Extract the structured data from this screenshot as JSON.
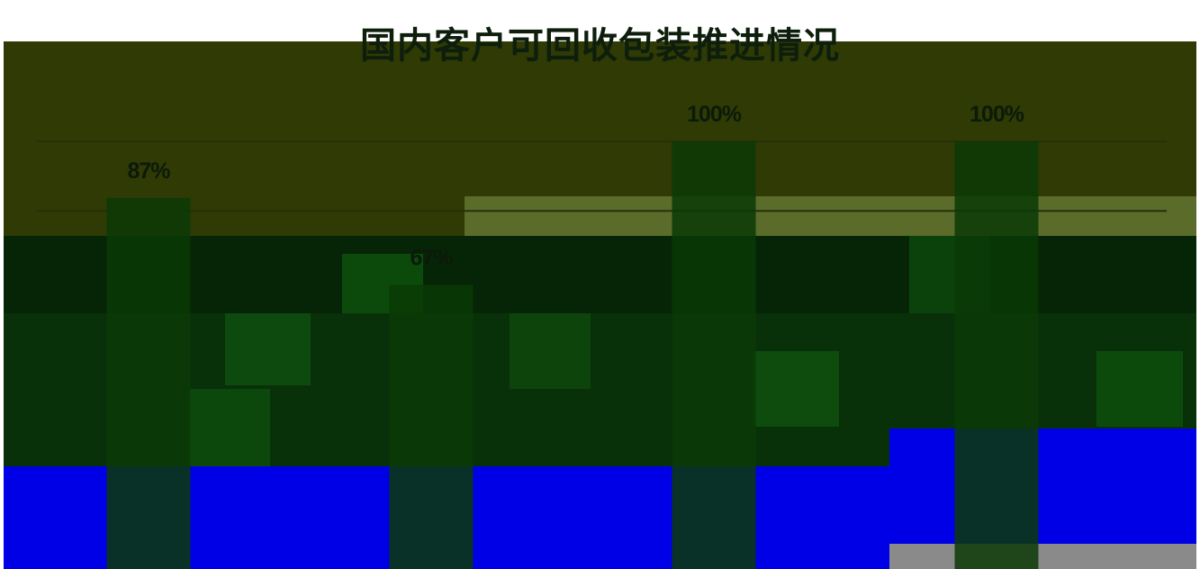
{
  "chart_data": {
    "type": "bar",
    "title": "国内客户可回收包装推进情况",
    "categories": [
      "",
      "",
      "",
      ""
    ],
    "values": [
      0.87,
      0.67,
      1.0,
      1.0
    ],
    "labels": [
      "87%",
      "67%",
      "100%",
      "100%"
    ],
    "ylim": [
      0,
      1.0
    ],
    "grid": true,
    "colors": {
      "bar": "#0b3a06",
      "plot_background": "#2f3a04",
      "gridline": "#27300a",
      "title": "#0e1e0c"
    }
  }
}
